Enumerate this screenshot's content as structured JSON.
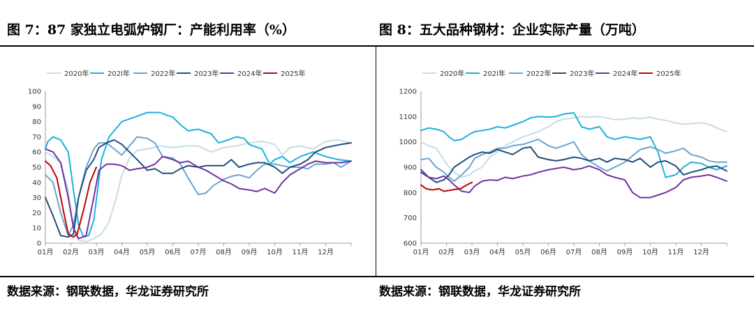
{
  "figures": {
    "left_title": "图 7：87 家独立电弧炉钢厂：产能利用率（%）",
    "right_title": "图 8：五大品种钢材：企业实际产量（万吨）",
    "left_source": "数据来源：钢联数据，华龙证券研究所",
    "right_source": "数据来源：钢联数据，华龙证券研究所"
  },
  "colors": {
    "2020年": "#c5dcea",
    "202l年": "#1ab0e0",
    "2022年": "#6aa3d0",
    "2023年": "#1f4e79",
    "2024年": "#7030a0",
    "2025年": "#c00000"
  },
  "chart_data": [
    {
      "type": "line",
      "title": "87 家独立电弧炉钢厂：产能利用率（%）",
      "xlabel": "",
      "ylabel": "",
      "x_ticks": [
        "01月",
        "02月",
        "03月",
        "04月",
        "05月",
        "06月",
        "07月",
        "08月",
        "09月",
        "10月",
        "11月",
        "12月"
      ],
      "ylim": [
        0,
        100
      ],
      "y_ticks": [
        0,
        10,
        20,
        30,
        40,
        50,
        60,
        70,
        80,
        90,
        100
      ],
      "legend_position": "top",
      "series": [
        {
          "name": "2020年",
          "x": [
            0,
            0.3,
            0.6,
            0.9,
            1.1,
            1.3,
            1.6,
            1.9,
            2.2,
            2.5,
            2.8,
            3.0,
            3.3,
            3.6,
            4.0,
            4.5,
            5.0,
            5.5,
            6.0,
            6.5,
            7.0,
            7.5,
            8.0,
            8.5,
            9.0,
            9.3,
            9.6,
            10.0,
            10.5,
            11.0,
            11.5,
            12.0
          ],
          "values": [
            60,
            57,
            53,
            35,
            10,
            2,
            1,
            3,
            6,
            14,
            31,
            45,
            56,
            61,
            62,
            64,
            63,
            64,
            64,
            60,
            63,
            64,
            66,
            67,
            65,
            58,
            63,
            64,
            62,
            67,
            68,
            66
          ]
        },
        {
          "name": "202l年",
          "x": [
            0,
            0.1,
            0.3,
            0.6,
            0.9,
            1.1,
            1.3,
            1.5,
            1.7,
            1.9,
            2.2,
            2.5,
            3.0,
            3.5,
            4.0,
            4.5,
            4.8,
            5.0,
            5.3,
            5.6,
            6.0,
            6.5,
            6.8,
            7.0,
            7.5,
            7.8,
            8.0,
            8.5,
            8.8,
            9.0,
            9.3,
            9.6,
            10.0,
            10.5,
            11.0,
            11.5,
            12.0
          ],
          "values": [
            62,
            67,
            70,
            68,
            60,
            35,
            12,
            4,
            5,
            15,
            55,
            70,
            80,
            83,
            86,
            86,
            84,
            83,
            78,
            74,
            75,
            72,
            66,
            67,
            70,
            69,
            65,
            62,
            52,
            55,
            57,
            53,
            57,
            60,
            57,
            55,
            54
          ]
        },
        {
          "name": "2022年",
          "x": [
            0,
            0.3,
            0.6,
            0.9,
            1.1,
            1.3,
            1.6,
            1.9,
            2.1,
            2.4,
            2.7,
            3.0,
            3.3,
            3.6,
            4.0,
            4.3,
            4.6,
            5.0,
            5.3,
            5.6,
            6.0,
            6.3,
            6.6,
            7.0,
            7.3,
            7.6,
            8.0,
            8.3,
            8.6,
            9.0,
            9.3,
            9.6,
            10.0,
            10.3,
            10.6,
            11.0,
            11.3,
            11.6,
            12.0
          ],
          "values": [
            45,
            40,
            20,
            5,
            12,
            30,
            50,
            62,
            66,
            66,
            62,
            58,
            64,
            70,
            69,
            66,
            57,
            56,
            52,
            43,
            32,
            33,
            38,
            42,
            44,
            45,
            43,
            48,
            52,
            52,
            51,
            50,
            50,
            49,
            52,
            52,
            53,
            50,
            54
          ]
        },
        {
          "name": "2023年",
          "x": [
            0,
            0.3,
            0.6,
            0.9,
            1.1,
            1.3,
            1.6,
            1.9,
            2.1,
            2.4,
            2.7,
            3.0,
            3.3,
            3.6,
            4.0,
            4.3,
            4.6,
            5.0,
            5.3,
            5.6,
            6.0,
            6.3,
            6.6,
            7.0,
            7.3,
            7.6,
            8.0,
            8.3,
            8.6,
            9.0,
            9.3,
            9.6,
            10.0,
            10.3,
            10.6,
            11.0,
            11.3,
            11.6,
            12.0
          ],
          "values": [
            30,
            18,
            5,
            4,
            6,
            30,
            48,
            55,
            63,
            66,
            68,
            65,
            60,
            55,
            48,
            49,
            46,
            46,
            49,
            51,
            50,
            51,
            51,
            51,
            55,
            50,
            52,
            53,
            53,
            50,
            46,
            50,
            52,
            55,
            60,
            63,
            64,
            65,
            66
          ]
        },
        {
          "name": "2024年",
          "x": [
            0,
            0.3,
            0.6,
            0.9,
            1.1,
            1.3,
            1.6,
            1.9,
            2.1,
            2.4,
            2.7,
            3.0,
            3.3,
            3.6,
            4.0,
            4.3,
            4.6,
            5.0,
            5.3,
            5.6,
            6.0,
            6.3,
            6.6,
            7.0,
            7.3,
            7.6,
            8.0,
            8.3,
            8.6,
            9.0,
            9.3,
            9.6,
            10.0,
            10.3,
            10.6,
            11.0,
            11.3,
            11.6,
            12.0
          ],
          "values": [
            62,
            60,
            53,
            30,
            10,
            3,
            5,
            30,
            48,
            52,
            52,
            51,
            48,
            49,
            50,
            52,
            57,
            55,
            53,
            54,
            50,
            48,
            45,
            41,
            39,
            36,
            35,
            34,
            36,
            33,
            40,
            45,
            49,
            52,
            54,
            53,
            53,
            53,
            54
          ]
        },
        {
          "name": "2025年",
          "x": [
            0,
            0.2,
            0.45,
            0.7,
            0.9,
            1.1,
            1.25,
            1.5,
            1.75,
            2.0
          ],
          "values": [
            54,
            51,
            43,
            22,
            6,
            4,
            6,
            22,
            40,
            50
          ]
        }
      ]
    },
    {
      "type": "line",
      "title": "五大品种钢材：企业实际产量（万吨）",
      "xlabel": "",
      "ylabel": "",
      "x_ticks": [
        "01月",
        "02月",
        "03月",
        "04月",
        "05月",
        "06月",
        "07月",
        "08月",
        "09月",
        "10月",
        "11月",
        "12月"
      ],
      "ylim": [
        600,
        1200
      ],
      "y_ticks": [
        600,
        700,
        800,
        900,
        1000,
        1100,
        1200
      ],
      "legend_position": "top",
      "series": [
        {
          "name": "2020年",
          "x": [
            0,
            0.3,
            0.6,
            0.9,
            1.1,
            1.3,
            1.6,
            1.9,
            2.1,
            2.4,
            2.7,
            3.0,
            3.3,
            3.6,
            4.0,
            4.3,
            4.6,
            5.0,
            5.3,
            5.6,
            6.0,
            6.3,
            6.6,
            7.0,
            7.3,
            7.6,
            8.0,
            8.3,
            8.6,
            9.0,
            9.3,
            9.6,
            10.0,
            10.3,
            10.6,
            11.0,
            11.3,
            11.6,
            12.0
          ],
          "values": [
            1000,
            985,
            975,
            930,
            900,
            880,
            860,
            870,
            885,
            900,
            940,
            960,
            985,
            1000,
            1020,
            1030,
            1040,
            1060,
            1080,
            1090,
            1095,
            1100,
            1098,
            1100,
            1095,
            1088,
            1090,
            1095,
            1092,
            1098,
            1090,
            1085,
            1075,
            1070,
            1072,
            1075,
            1070,
            1055,
            1040
          ]
        },
        {
          "name": "202l年",
          "x": [
            0,
            0.3,
            0.6,
            0.9,
            1.1,
            1.3,
            1.6,
            1.9,
            2.1,
            2.4,
            2.7,
            3.0,
            3.3,
            3.6,
            4.0,
            4.3,
            4.6,
            5.0,
            5.3,
            5.6,
            6.0,
            6.3,
            6.6,
            7.0,
            7.3,
            7.6,
            8.0,
            8.3,
            8.6,
            9.0,
            9.3,
            9.6,
            10.0,
            10.3,
            10.6,
            11.0,
            11.3,
            11.6,
            12.0
          ],
          "values": [
            1045,
            1055,
            1050,
            1040,
            1020,
            1005,
            1010,
            1030,
            1040,
            1045,
            1050,
            1060,
            1055,
            1065,
            1080,
            1095,
            1100,
            1098,
            1100,
            1110,
            1115,
            1060,
            1050,
            1060,
            1020,
            1010,
            1020,
            1015,
            1010,
            1020,
            960,
            860,
            870,
            900,
            920,
            915,
            900,
            890,
            905
          ]
        },
        {
          "name": "2022年",
          "x": [
            0,
            0.3,
            0.6,
            0.9,
            1.1,
            1.3,
            1.6,
            1.9,
            2.1,
            2.4,
            2.7,
            3.0,
            3.3,
            3.6,
            4.0,
            4.3,
            4.6,
            5.0,
            5.3,
            5.6,
            6.0,
            6.3,
            6.6,
            7.0,
            7.3,
            7.6,
            8.0,
            8.3,
            8.6,
            9.0,
            9.3,
            9.6,
            10.0,
            10.3,
            10.6,
            11.0,
            11.3,
            11.6,
            12.0
          ],
          "values": [
            930,
            935,
            900,
            880,
            860,
            845,
            870,
            900,
            935,
            950,
            960,
            975,
            975,
            985,
            990,
            1000,
            1010,
            985,
            975,
            985,
            1000,
            950,
            925,
            900,
            885,
            900,
            920,
            945,
            970,
            980,
            970,
            955,
            965,
            975,
            950,
            940,
            925,
            920,
            920
          ]
        },
        {
          "name": "2023年",
          "x": [
            0,
            0.3,
            0.6,
            0.9,
            1.1,
            1.3,
            1.6,
            1.9,
            2.1,
            2.4,
            2.7,
            3.0,
            3.3,
            3.6,
            4.0,
            4.3,
            4.6,
            5.0,
            5.3,
            5.6,
            6.0,
            6.3,
            6.6,
            7.0,
            7.3,
            7.6,
            8.0,
            8.3,
            8.6,
            9.0,
            9.3,
            9.6,
            10.0,
            10.3,
            10.6,
            11.0,
            11.3,
            11.6,
            12.0
          ],
          "values": [
            880,
            860,
            840,
            850,
            870,
            900,
            920,
            940,
            950,
            960,
            955,
            970,
            960,
            950,
            975,
            980,
            940,
            930,
            925,
            930,
            940,
            935,
            925,
            935,
            920,
            935,
            930,
            920,
            935,
            900,
            920,
            925,
            905,
            870,
            880,
            890,
            900,
            905,
            885
          ]
        },
        {
          "name": "2024年",
          "x": [
            0,
            0.3,
            0.6,
            0.9,
            1.1,
            1.3,
            1.6,
            1.9,
            2.1,
            2.4,
            2.7,
            3.0,
            3.3,
            3.6,
            4.0,
            4.3,
            4.6,
            5.0,
            5.3,
            5.6,
            6.0,
            6.3,
            6.6,
            7.0,
            7.3,
            7.6,
            8.0,
            8.3,
            8.6,
            9.0,
            9.3,
            9.6,
            10.0,
            10.3,
            10.6,
            11.0,
            11.3,
            11.6,
            12.0
          ],
          "values": [
            890,
            860,
            855,
            865,
            850,
            830,
            805,
            800,
            825,
            845,
            850,
            848,
            860,
            855,
            865,
            870,
            880,
            890,
            895,
            900,
            890,
            895,
            905,
            890,
            870,
            860,
            850,
            800,
            780,
            780,
            790,
            800,
            820,
            850,
            860,
            865,
            870,
            860,
            845
          ]
        },
        {
          "name": "2025年",
          "x": [
            0,
            0.2,
            0.45,
            0.7,
            0.9,
            1.1,
            1.3,
            1.55,
            1.8,
            2.0
          ],
          "values": [
            830,
            815,
            810,
            815,
            805,
            808,
            812,
            815,
            830,
            840
          ]
        }
      ]
    }
  ]
}
